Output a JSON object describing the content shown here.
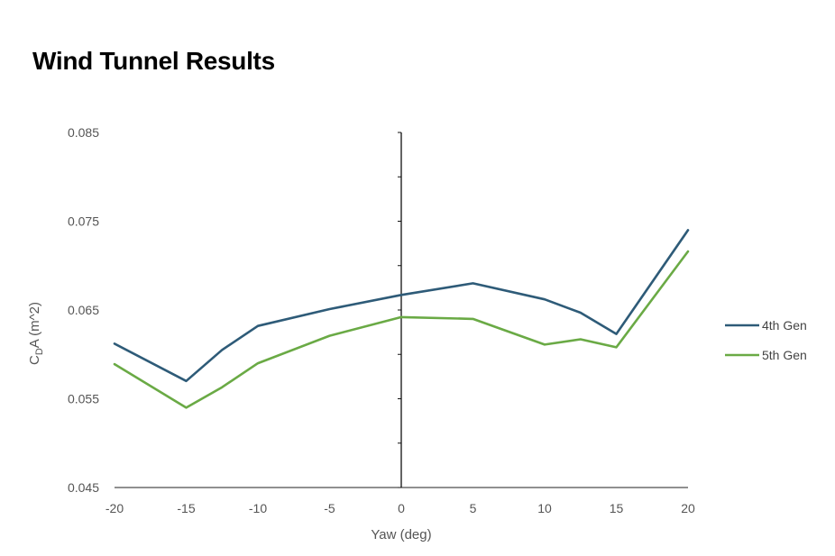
{
  "header": {
    "title": "Wind Tunnel Results"
  },
  "chart_data": {
    "type": "line",
    "xlabel": "Yaw (deg)",
    "ylabel": {
      "main": "C",
      "sub": "D",
      "rest": "A (m^2)"
    },
    "xlim": [
      -20,
      20
    ],
    "ylim": [
      0.045,
      0.085
    ],
    "x_ticks": [
      -20,
      -15,
      -10,
      -5,
      0,
      5,
      10,
      15,
      20
    ],
    "x_tick_labels": [
      "-20",
      "-15",
      "-10",
      "-5",
      "0",
      "5",
      "10",
      "15",
      "20"
    ],
    "y_ticks": [
      0.045,
      0.055,
      0.065,
      0.075,
      0.085
    ],
    "y_tick_labels": [
      "0.045",
      "0.055",
      "0.065",
      "0.075",
      "0.085"
    ],
    "grid": false,
    "legend_position": "right",
    "series": [
      {
        "name": "4th Gen",
        "color": "#2e5b78",
        "x": [
          -20,
          -15,
          -12.5,
          -10,
          -5,
          0,
          5,
          10,
          12.5,
          15,
          20
        ],
        "y": [
          0.0612,
          0.057,
          0.0605,
          0.0632,
          0.0651,
          0.0667,
          0.068,
          0.0662,
          0.0647,
          0.0623,
          0.074
        ]
      },
      {
        "name": "5th Gen",
        "color": "#6aaa45",
        "x": [
          -20,
          -15,
          -12.5,
          -10,
          -5,
          0,
          5,
          10,
          12.5,
          15,
          20
        ],
        "y": [
          0.0589,
          0.054,
          0.0563,
          0.059,
          0.0621,
          0.0642,
          0.064,
          0.0611,
          0.0617,
          0.0608,
          0.0716
        ]
      }
    ]
  }
}
